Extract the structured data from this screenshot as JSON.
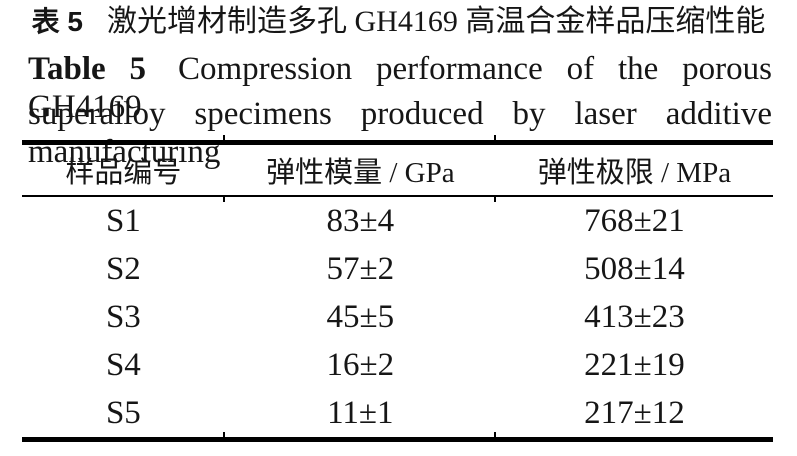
{
  "colors": {
    "background": "#ffffff",
    "text": "#161616",
    "rule": "#000000"
  },
  "caption_zh": {
    "label": "表 5",
    "text": "激光增材制造多孔 GH4169 高温合金样品压缩性能"
  },
  "caption_en": {
    "label": "Table 5",
    "line1_rest": "Compression performance of the porous GH4169",
    "line2": "superalloy specimens produced by laser additive manufacturing"
  },
  "table": {
    "columns": [
      "样品编号",
      "弹性模量 / GPa",
      "弹性极限 / MPa"
    ],
    "rows": [
      [
        "S1",
        "83±4",
        "768±21"
      ],
      [
        "S2",
        "57±2",
        "508±14"
      ],
      [
        "S3",
        "45±5",
        "413±23"
      ],
      [
        "S4",
        "16±2",
        "221±19"
      ],
      [
        "S5",
        "11±1",
        "217±12"
      ]
    ]
  }
}
